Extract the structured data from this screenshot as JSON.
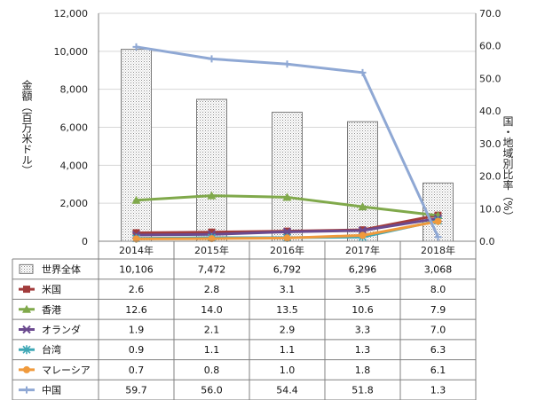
{
  "chart_data": {
    "type": "bar+line",
    "categories": [
      "2014年",
      "2015年",
      "2016年",
      "2017年",
      "2018年"
    ],
    "left_axis": {
      "label": "金額（百万米ドル）",
      "min": 0,
      "max": 12000,
      "ticks": [
        "0",
        "2,000",
        "4,000",
        "6,000",
        "8,000",
        "10,000",
        "12,000"
      ]
    },
    "right_axis": {
      "label": "国・地域別比率（%）",
      "min": 0,
      "max": 70,
      "ticks": [
        "0.0",
        "10.0",
        "20.0",
        "30.0",
        "40.0",
        "50.0",
        "60.0",
        "70.0"
      ]
    },
    "bar_series": {
      "name": "世界全体",
      "values": [
        10106,
        7472,
        6792,
        6296,
        3068
      ],
      "labels": [
        "10,106",
        "7,472",
        "6,792",
        "6,296",
        "3,068"
      ],
      "color": "#9e9e9e"
    },
    "line_series": [
      {
        "name": "米国",
        "values": [
          2.6,
          2.8,
          3.1,
          3.5,
          8.0
        ],
        "labels": [
          "2.6",
          "2.8",
          "3.1",
          "3.5",
          "8.0"
        ],
        "color": "#a23c3c",
        "marker": "square"
      },
      {
        "name": "香港",
        "values": [
          12.6,
          14.0,
          13.5,
          10.6,
          7.9
        ],
        "labels": [
          "12.6",
          "14.0",
          "13.5",
          "10.6",
          "7.9"
        ],
        "color": "#80a94b",
        "marker": "triangle"
      },
      {
        "name": "オランダ",
        "values": [
          1.9,
          2.1,
          2.9,
          3.3,
          7.0
        ],
        "labels": [
          "1.9",
          "2.1",
          "2.9",
          "3.3",
          "7.0"
        ],
        "color": "#6b4a8f",
        "marker": "x"
      },
      {
        "name": "台湾",
        "values": [
          0.9,
          1.1,
          1.1,
          1.3,
          6.3
        ],
        "labels": [
          "0.9",
          "1.1",
          "1.1",
          "1.3",
          "6.3"
        ],
        "color": "#3ea7b5",
        "marker": "star"
      },
      {
        "name": "マレーシア",
        "values": [
          0.7,
          0.8,
          1.0,
          1.8,
          6.1
        ],
        "labels": [
          "0.7",
          "0.8",
          "1.0",
          "1.8",
          "6.1"
        ],
        "color": "#f09a3c",
        "marker": "circle"
      },
      {
        "name": "中国",
        "values": [
          59.7,
          56.0,
          54.4,
          51.8,
          1.3
        ],
        "labels": [
          "59.7",
          "56.0",
          "54.4",
          "51.8",
          "1.3"
        ],
        "color": "#8fa8d4",
        "marker": "plus"
      }
    ]
  }
}
